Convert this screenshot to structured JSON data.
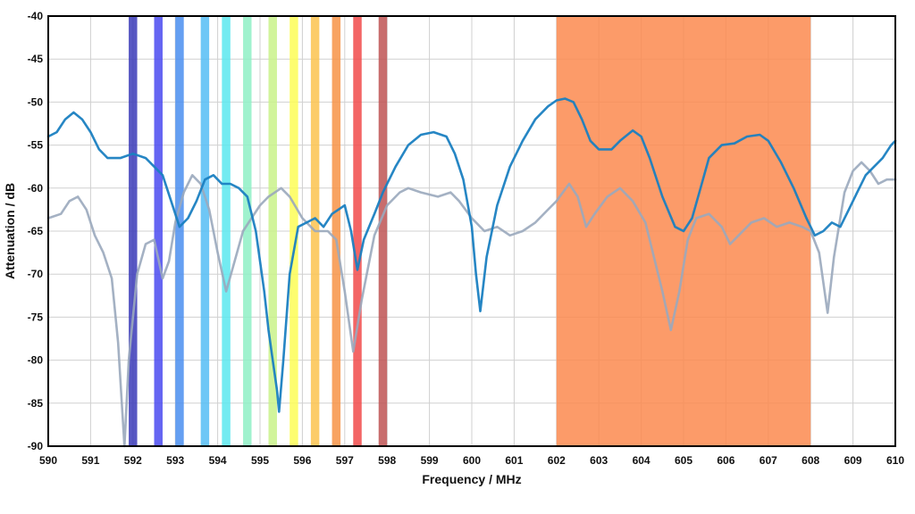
{
  "chart_data": {
    "type": "line",
    "xlabel": "Frequency / MHz",
    "ylabel": "Attenuation / dB",
    "xlim": [
      590,
      610
    ],
    "ylim": [
      -90,
      -40
    ],
    "xticks": [
      590,
      591,
      592,
      593,
      594,
      595,
      596,
      597,
      598,
      599,
      600,
      601,
      602,
      603,
      604,
      605,
      606,
      607,
      608,
      609,
      610
    ],
    "yticks": [
      -40,
      -45,
      -50,
      -55,
      -60,
      -65,
      -70,
      -75,
      -80,
      -85,
      -90
    ],
    "grid": true,
    "bands": [
      {
        "x0": 591.9,
        "x1": 592.1,
        "color": "#3a3ab8"
      },
      {
        "x0": 592.5,
        "x1": 592.7,
        "color": "#4a4af0"
      },
      {
        "x0": 593.0,
        "x1": 593.2,
        "color": "#4a8ef0"
      },
      {
        "x0": 593.6,
        "x1": 593.8,
        "color": "#55bdf5"
      },
      {
        "x0": 594.1,
        "x1": 594.3,
        "color": "#5ae8ee"
      },
      {
        "x0": 594.6,
        "x1": 594.8,
        "color": "#8ff0c6"
      },
      {
        "x0": 595.2,
        "x1": 595.4,
        "color": "#c9f28a"
      },
      {
        "x0": 595.7,
        "x1": 595.9,
        "color": "#fdfd56"
      },
      {
        "x0": 596.2,
        "x1": 596.4,
        "color": "#fbc34f"
      },
      {
        "x0": 596.7,
        "x1": 596.9,
        "color": "#f79347"
      },
      {
        "x0": 597.2,
        "x1": 597.4,
        "color": "#f14a4a"
      },
      {
        "x0": 597.8,
        "x1": 598.0,
        "color": "#be5454"
      },
      {
        "x0": 602.0,
        "x1": 608.0,
        "color": "#fb8a4f"
      }
    ],
    "series": [
      {
        "color": "#9aa8bd",
        "points": [
          [
            590.0,
            -63.5
          ],
          [
            590.3,
            -63.0
          ],
          [
            590.5,
            -61.5
          ],
          [
            590.7,
            -61.0
          ],
          [
            590.9,
            -62.5
          ],
          [
            591.1,
            -65.5
          ],
          [
            591.3,
            -67.5
          ],
          [
            591.5,
            -70.5
          ],
          [
            591.65,
            -78.0
          ],
          [
            591.75,
            -86.0
          ],
          [
            591.8,
            -90.0
          ],
          [
            591.9,
            -80.0
          ],
          [
            592.1,
            -70.0
          ],
          [
            592.3,
            -66.5
          ],
          [
            592.5,
            -66.0
          ],
          [
            592.7,
            -70.5
          ],
          [
            592.85,
            -68.5
          ],
          [
            593.0,
            -64.0
          ],
          [
            593.2,
            -60.5
          ],
          [
            593.4,
            -58.5
          ],
          [
            593.6,
            -59.5
          ],
          [
            593.8,
            -62.5
          ],
          [
            594.0,
            -67.5
          ],
          [
            594.2,
            -72.0
          ],
          [
            594.4,
            -68.5
          ],
          [
            594.6,
            -65.0
          ],
          [
            594.8,
            -63.5
          ],
          [
            595.0,
            -62.0
          ],
          [
            595.2,
            -61.0
          ],
          [
            595.5,
            -60.0
          ],
          [
            595.7,
            -61.0
          ],
          [
            596.0,
            -63.5
          ],
          [
            596.3,
            -65.0
          ],
          [
            596.6,
            -65.0
          ],
          [
            596.8,
            -66.0
          ],
          [
            597.0,
            -72.0
          ],
          [
            597.2,
            -79.0
          ],
          [
            597.4,
            -73.0
          ],
          [
            597.7,
            -65.5
          ],
          [
            598.0,
            -62.0
          ],
          [
            598.3,
            -60.5
          ],
          [
            598.5,
            -60.0
          ],
          [
            598.8,
            -60.5
          ],
          [
            599.2,
            -61.0
          ],
          [
            599.5,
            -60.5
          ],
          [
            599.7,
            -61.5
          ],
          [
            600.0,
            -63.5
          ],
          [
            600.3,
            -65.0
          ],
          [
            600.6,
            -64.5
          ],
          [
            600.9,
            -65.5
          ],
          [
            601.2,
            -65.0
          ],
          [
            601.5,
            -64.0
          ],
          [
            601.8,
            -62.5
          ],
          [
            602.0,
            -61.5
          ],
          [
            602.3,
            -59.5
          ],
          [
            602.5,
            -61.0
          ],
          [
            602.7,
            -64.5
          ],
          [
            602.9,
            -63.0
          ],
          [
            603.2,
            -61.0
          ],
          [
            603.5,
            -60.0
          ],
          [
            603.8,
            -61.5
          ],
          [
            604.1,
            -64.0
          ],
          [
            604.3,
            -68.0
          ],
          [
            604.5,
            -72.0
          ],
          [
            604.7,
            -76.5
          ],
          [
            604.9,
            -72.0
          ],
          [
            605.1,
            -66.0
          ],
          [
            605.3,
            -63.5
          ],
          [
            605.6,
            -63.0
          ],
          [
            605.9,
            -64.5
          ],
          [
            606.1,
            -66.5
          ],
          [
            606.3,
            -65.5
          ],
          [
            606.6,
            -64.0
          ],
          [
            606.9,
            -63.5
          ],
          [
            607.2,
            -64.5
          ],
          [
            607.5,
            -64.0
          ],
          [
            607.8,
            -64.5
          ],
          [
            608.0,
            -65.0
          ],
          [
            608.2,
            -67.5
          ],
          [
            608.4,
            -74.5
          ],
          [
            608.55,
            -68.0
          ],
          [
            608.8,
            -60.5
          ],
          [
            609.0,
            -58.0
          ],
          [
            609.2,
            -57.0
          ],
          [
            609.4,
            -58.0
          ],
          [
            609.6,
            -59.5
          ],
          [
            609.8,
            -59.0
          ],
          [
            610.0,
            -59.0
          ]
        ]
      },
      {
        "color": "#1a7fc1",
        "points": [
          [
            590.0,
            -54.0
          ],
          [
            590.2,
            -53.5
          ],
          [
            590.4,
            -52.0
          ],
          [
            590.6,
            -51.2
          ],
          [
            590.8,
            -52.0
          ],
          [
            591.0,
            -53.5
          ],
          [
            591.2,
            -55.5
          ],
          [
            591.4,
            -56.5
          ],
          [
            591.7,
            -56.5
          ],
          [
            592.0,
            -56.0
          ],
          [
            592.3,
            -56.5
          ],
          [
            592.5,
            -57.5
          ],
          [
            592.7,
            -58.5
          ],
          [
            592.9,
            -61.5
          ],
          [
            593.1,
            -64.5
          ],
          [
            593.3,
            -63.5
          ],
          [
            593.5,
            -61.5
          ],
          [
            593.7,
            -59.0
          ],
          [
            593.9,
            -58.5
          ],
          [
            594.1,
            -59.5
          ],
          [
            594.3,
            -59.5
          ],
          [
            594.5,
            -60.0
          ],
          [
            594.7,
            -61.0
          ],
          [
            594.9,
            -65.0
          ],
          [
            595.1,
            -72.0
          ],
          [
            595.2,
            -76.5
          ],
          [
            595.3,
            -80.0
          ],
          [
            595.4,
            -83.5
          ],
          [
            595.45,
            -86.0
          ],
          [
            595.55,
            -80.0
          ],
          [
            595.7,
            -70.0
          ],
          [
            595.9,
            -64.5
          ],
          [
            596.1,
            -64.0
          ],
          [
            596.3,
            -63.5
          ],
          [
            596.5,
            -64.5
          ],
          [
            596.7,
            -63.0
          ],
          [
            597.0,
            -62.0
          ],
          [
            597.15,
            -65.0
          ],
          [
            597.3,
            -69.5
          ],
          [
            597.45,
            -66.0
          ],
          [
            597.7,
            -63.0
          ],
          [
            597.9,
            -60.5
          ],
          [
            598.2,
            -57.5
          ],
          [
            598.5,
            -55.0
          ],
          [
            598.8,
            -53.8
          ],
          [
            599.1,
            -53.5
          ],
          [
            599.4,
            -54.0
          ],
          [
            599.6,
            -56.0
          ],
          [
            599.8,
            -59.0
          ],
          [
            600.0,
            -64.5
          ],
          [
            600.1,
            -70.0
          ],
          [
            600.2,
            -74.3
          ],
          [
            600.35,
            -68.0
          ],
          [
            600.6,
            -62.0
          ],
          [
            600.9,
            -57.5
          ],
          [
            601.2,
            -54.5
          ],
          [
            601.5,
            -52.0
          ],
          [
            601.8,
            -50.5
          ],
          [
            602.0,
            -49.8
          ],
          [
            602.2,
            -49.6
          ],
          [
            602.4,
            -50.0
          ],
          [
            602.6,
            -52.0
          ],
          [
            602.8,
            -54.5
          ],
          [
            603.0,
            -55.5
          ],
          [
            603.3,
            -55.5
          ],
          [
            603.5,
            -54.5
          ],
          [
            603.8,
            -53.3
          ],
          [
            604.0,
            -54.0
          ],
          [
            604.2,
            -56.5
          ],
          [
            604.5,
            -61.0
          ],
          [
            604.8,
            -64.5
          ],
          [
            605.0,
            -65.0
          ],
          [
            605.2,
            -63.5
          ],
          [
            605.4,
            -60.0
          ],
          [
            605.6,
            -56.5
          ],
          [
            605.9,
            -55.0
          ],
          [
            606.2,
            -54.8
          ],
          [
            606.5,
            -54.0
          ],
          [
            606.8,
            -53.8
          ],
          [
            607.0,
            -54.5
          ],
          [
            607.3,
            -57.0
          ],
          [
            607.6,
            -60.0
          ],
          [
            607.9,
            -63.5
          ],
          [
            608.1,
            -65.5
          ],
          [
            608.3,
            -65.0
          ],
          [
            608.5,
            -64.0
          ],
          [
            608.7,
            -64.5
          ],
          [
            608.9,
            -62.5
          ],
          [
            609.1,
            -60.5
          ],
          [
            609.3,
            -58.5
          ],
          [
            609.5,
            -57.5
          ],
          [
            609.7,
            -56.5
          ],
          [
            609.9,
            -55.0
          ],
          [
            610.0,
            -54.5
          ]
        ]
      }
    ]
  }
}
